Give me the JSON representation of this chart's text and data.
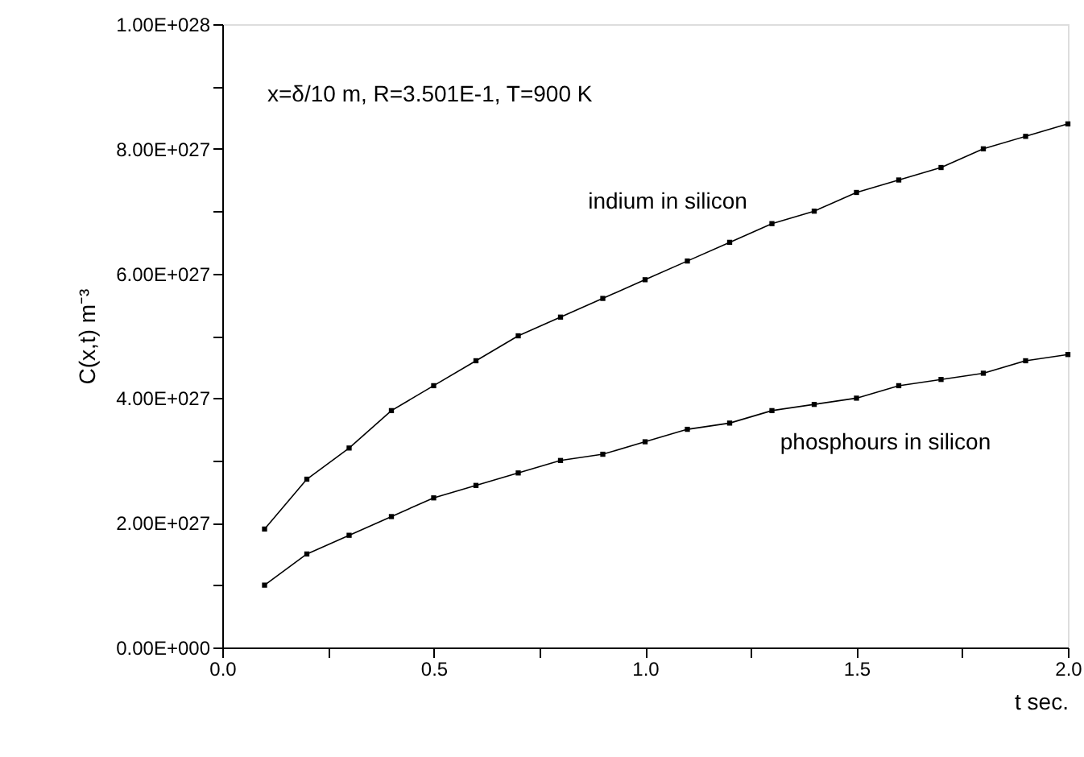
{
  "chart_data": {
    "type": "line",
    "x": [
      0.1,
      0.2,
      0.3,
      0.4,
      0.5,
      0.6,
      0.7,
      0.8,
      0.9,
      1.0,
      1.1,
      1.2,
      1.3,
      1.4,
      1.5,
      1.6,
      1.7,
      1.8,
      1.9,
      2.0
    ],
    "series": [
      {
        "name": "indium in silicon",
        "color": "#000000",
        "values": [
          1.9e+27,
          2.7e+27,
          3.2e+27,
          3.8e+27,
          4.2e+27,
          4.6e+27,
          5e+27,
          5.3e+27,
          5.6e+27,
          5.9e+27,
          6.2e+27,
          6.5e+27,
          6.8e+27,
          7e+27,
          7.3e+27,
          7.5e+27,
          7.7e+27,
          8e+27,
          8.2e+27,
          8.4e+27
        ]
      },
      {
        "name": "phosphours in silicon",
        "color": "#000000",
        "values": [
          1e+27,
          1.5e+27,
          1.8e+27,
          2.1e+27,
          2.4e+27,
          2.6e+27,
          2.8e+27,
          3e+27,
          3.1e+27,
          3.3e+27,
          3.5e+27,
          3.6e+27,
          3.8e+27,
          3.9e+27,
          4e+27,
          4.2e+27,
          4.3e+27,
          4.4e+27,
          4.6e+27,
          4.7e+27
        ]
      }
    ],
    "xlabel": "t sec.",
    "ylabel": "C(x,t) m⁻³",
    "xlim": [
      0,
      2.0
    ],
    "ylim": [
      0,
      1e+28
    ],
    "xticks": [
      {
        "value": 0,
        "label": "0.0"
      },
      {
        "value": 0.25,
        "label": null
      },
      {
        "value": 0.5,
        "label": "0.5"
      },
      {
        "value": 0.75,
        "label": null
      },
      {
        "value": 1.0,
        "label": "1.0"
      },
      {
        "value": 1.25,
        "label": null
      },
      {
        "value": 1.5,
        "label": "1.5"
      },
      {
        "value": 1.75,
        "label": null
      },
      {
        "value": 2.0,
        "label": "2.0"
      }
    ],
    "yticks": [
      {
        "value": 0,
        "label": "0.00E+000"
      },
      {
        "value": 1e+27,
        "label": null
      },
      {
        "value": 2e+27,
        "label": "2.00E+027"
      },
      {
        "value": 3e+27,
        "label": null
      },
      {
        "value": 4e+27,
        "label": "4.00E+027"
      },
      {
        "value": 5e+27,
        "label": null
      },
      {
        "value": 6e+27,
        "label": "6.00E+027"
      },
      {
        "value": 7e+27,
        "label": null
      },
      {
        "value": 8e+27,
        "label": "8.00E+027"
      },
      {
        "value": 9e+27,
        "label": null
      },
      {
        "value": 1e+28,
        "label": "1.00E+028"
      }
    ],
    "annotations": [
      "x=δ/10 m, R=3.501E-1, T=900 K"
    ],
    "marker": "square",
    "line_style": "solid",
    "grid": false
  }
}
